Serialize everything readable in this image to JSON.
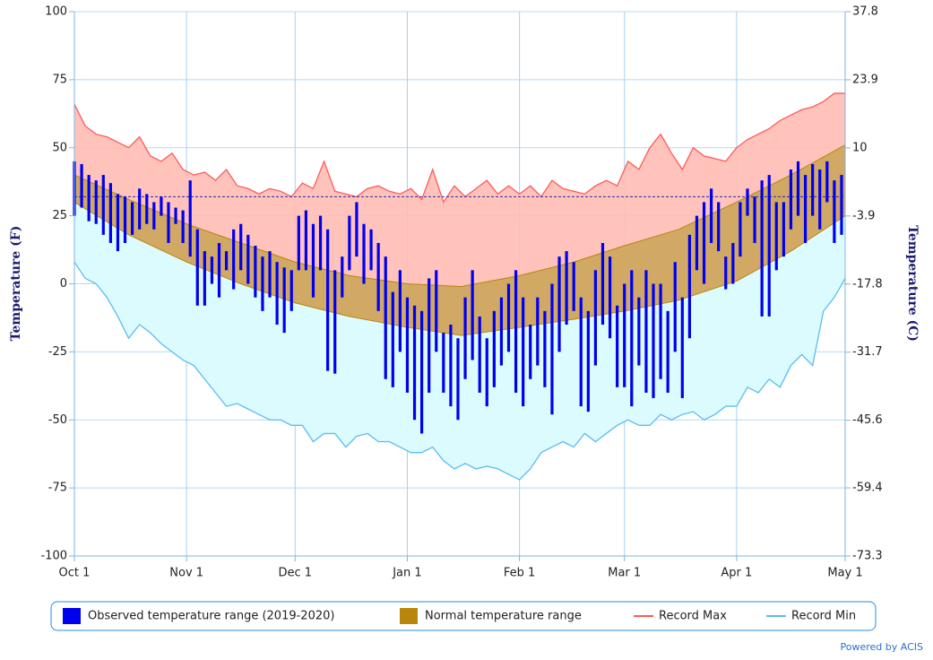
{
  "chart_data": {
    "type": "range",
    "y_axis_label": "Temperature (F)",
    "y2_axis_label": "Temperature (C)",
    "credit": "Powered by ACIS",
    "xlim": [
      0,
      213
    ],
    "xticks": [
      {
        "value": 0,
        "label": "Oct 1"
      },
      {
        "value": 31,
        "label": "Nov 1"
      },
      {
        "value": 61,
        "label": "Dec 1"
      },
      {
        "value": 92,
        "label": "Jan 1"
      },
      {
        "value": 123,
        "label": "Feb 1"
      },
      {
        "value": 152,
        "label": "Mar 1"
      },
      {
        "value": 183,
        "label": "Apr 1"
      },
      {
        "value": 213,
        "label": "May 1"
      }
    ],
    "ylim": [
      -100,
      100
    ],
    "yticks": [
      -100,
      -75,
      -50,
      -25,
      0,
      25,
      50,
      75,
      100
    ],
    "y2lim": [
      -73.3,
      37.8
    ],
    "y2ticks": [
      -73.3,
      -59.4,
      -45.6,
      -31.7,
      -17.8,
      -3.9,
      10,
      23.9,
      37.8
    ],
    "grid": true,
    "hline": 32,
    "hline_color": "#2a2aa8",
    "series": [
      {
        "name": "Observed temperature range (2019-2020)",
        "type": "bar",
        "color": "#0000ee",
        "x": [
          0,
          2,
          4,
          6,
          8,
          10,
          12,
          14,
          16,
          18,
          20,
          22,
          24,
          26,
          28,
          30,
          32,
          34,
          36,
          38,
          40,
          42,
          44,
          46,
          48,
          50,
          52,
          54,
          56,
          58,
          60,
          62,
          64,
          66,
          68,
          70,
          72,
          74,
          76,
          78,
          80,
          82,
          84,
          86,
          88,
          90,
          92,
          94,
          96,
          98,
          100,
          102,
          104,
          106,
          108,
          110,
          112,
          114,
          116,
          118,
          120,
          122,
          124,
          126,
          128,
          130,
          132,
          134,
          136,
          138,
          140,
          142,
          144,
          146,
          148,
          150,
          152,
          154,
          156,
          158,
          160,
          162,
          164,
          166,
          168,
          170,
          172,
          174,
          176,
          178,
          180,
          182,
          184,
          186,
          188,
          190,
          192,
          194,
          196,
          198,
          200,
          202,
          204,
          206,
          208,
          210,
          212
        ],
        "high": [
          45,
          44,
          40,
          38,
          40,
          37,
          33,
          32,
          30,
          35,
          33,
          30,
          32,
          30,
          28,
          27,
          38,
          20,
          12,
          10,
          15,
          12,
          20,
          22,
          18,
          14,
          10,
          12,
          8,
          6,
          5,
          25,
          27,
          22,
          25,
          20,
          5,
          10,
          25,
          30,
          22,
          20,
          15,
          10,
          -3,
          5,
          -5,
          -8,
          -10,
          2,
          5,
          -18,
          -15,
          -20,
          -5,
          5,
          -12,
          -20,
          -10,
          -5,
          0,
          5,
          -5,
          -15,
          -5,
          -10,
          0,
          10,
          12,
          8,
          -5,
          -10,
          5,
          15,
          10,
          -8,
          0,
          5,
          -5,
          5,
          0,
          0,
          -10,
          8,
          -5,
          18,
          25,
          30,
          35,
          30,
          10,
          15,
          30,
          35,
          32,
          38,
          40,
          30,
          30,
          42,
          45,
          40,
          44,
          42,
          45,
          38,
          40
        ],
        "low": [
          25,
          28,
          23,
          22,
          18,
          15,
          12,
          15,
          18,
          20,
          22,
          20,
          25,
          15,
          22,
          15,
          10,
          -8,
          -8,
          0,
          -5,
          5,
          -2,
          5,
          0,
          -5,
          -10,
          -5,
          -15,
          -18,
          -10,
          5,
          5,
          -5,
          5,
          -32,
          -33,
          -5,
          5,
          10,
          0,
          5,
          -10,
          -35,
          -38,
          -25,
          -40,
          -50,
          -55,
          -40,
          -25,
          -40,
          -45,
          -50,
          -35,
          -28,
          -40,
          -45,
          -38,
          -30,
          -25,
          -40,
          -45,
          -35,
          -30,
          -38,
          -48,
          -25,
          -15,
          -10,
          -45,
          -47,
          -30,
          -15,
          -20,
          -38,
          -38,
          -45,
          -30,
          -40,
          -42,
          -35,
          -40,
          -25,
          -42,
          -20,
          5,
          0,
          15,
          12,
          -2,
          0,
          10,
          25,
          15,
          -12,
          -12,
          5,
          10,
          20,
          25,
          15,
          25,
          20,
          30,
          15,
          18
        ]
      },
      {
        "name": "Normal temperature range",
        "type": "area",
        "color": "#b8860b",
        "fill_color": "#d2a865",
        "x": [
          0,
          15,
          31,
          46,
          61,
          76,
          92,
          107,
          123,
          138,
          152,
          167,
          183,
          198,
          213
        ],
        "high": [
          40,
          31,
          22,
          15,
          8,
          3,
          0,
          -1,
          3,
          8,
          14,
          20,
          30,
          40,
          51
        ],
        "low": [
          30,
          18,
          8,
          0,
          -7,
          -12,
          -16,
          -19,
          -16,
          -13,
          -10,
          -6,
          1,
          12,
          25
        ]
      },
      {
        "name": "Record Max",
        "type": "line",
        "color": "#ff5a5a",
        "fill_color": "#ffbcb4",
        "x": [
          0,
          3,
          6,
          9,
          12,
          15,
          18,
          21,
          24,
          27,
          30,
          33,
          36,
          39,
          42,
          45,
          48,
          51,
          54,
          57,
          60,
          63,
          66,
          69,
          72,
          75,
          78,
          81,
          84,
          87,
          90,
          93,
          96,
          99,
          102,
          105,
          108,
          111,
          114,
          117,
          120,
          123,
          126,
          129,
          132,
          135,
          138,
          141,
          144,
          147,
          150,
          153,
          156,
          159,
          162,
          165,
          168,
          171,
          174,
          177,
          180,
          183,
          186,
          189,
          192,
          195,
          198,
          201,
          204,
          207,
          210,
          213
        ],
        "values": [
          66,
          58,
          55,
          54,
          52,
          50,
          54,
          47,
          45,
          48,
          42,
          40,
          41,
          38,
          42,
          36,
          35,
          33,
          35,
          34,
          32,
          37,
          35,
          45,
          34,
          33,
          32,
          35,
          36,
          34,
          33,
          35,
          31,
          42,
          30,
          36,
          32,
          35,
          38,
          33,
          36,
          33,
          36,
          32,
          38,
          35,
          34,
          33,
          36,
          38,
          36,
          45,
          42,
          50,
          55,
          48,
          42,
          50,
          47,
          46,
          45,
          50,
          53,
          55,
          57,
          60,
          62,
          64,
          65,
          67,
          70,
          70
        ]
      },
      {
        "name": "Record Min",
        "type": "line",
        "color": "#5bbcf0",
        "fill_color": "#dcfbff",
        "x": [
          0,
          3,
          6,
          9,
          12,
          15,
          18,
          21,
          24,
          27,
          30,
          33,
          36,
          39,
          42,
          45,
          48,
          51,
          54,
          57,
          60,
          63,
          66,
          69,
          72,
          75,
          78,
          81,
          84,
          87,
          90,
          93,
          96,
          99,
          102,
          105,
          108,
          111,
          114,
          117,
          120,
          123,
          126,
          129,
          132,
          135,
          138,
          141,
          144,
          147,
          150,
          153,
          156,
          159,
          162,
          165,
          168,
          171,
          174,
          177,
          180,
          183,
          186,
          189,
          192,
          195,
          198,
          201,
          204,
          207,
          210,
          213
        ],
        "values": [
          8,
          2,
          0,
          -5,
          -12,
          -20,
          -15,
          -18,
          -22,
          -25,
          -28,
          -30,
          -35,
          -40,
          -45,
          -44,
          -46,
          -48,
          -50,
          -50,
          -52,
          -52,
          -58,
          -55,
          -55,
          -60,
          -56,
          -55,
          -58,
          -58,
          -60,
          -62,
          -62,
          -60,
          -65,
          -68,
          -66,
          -68,
          -67,
          -68,
          -70,
          -72,
          -68,
          -62,
          -60,
          -58,
          -60,
          -55,
          -58,
          -55,
          -52,
          -50,
          -52,
          -52,
          -48,
          -50,
          -48,
          -47,
          -50,
          -48,
          -45,
          -45,
          -38,
          -40,
          -35,
          -38,
          -30,
          -26,
          -30,
          -10,
          -5,
          2
        ]
      }
    ]
  }
}
